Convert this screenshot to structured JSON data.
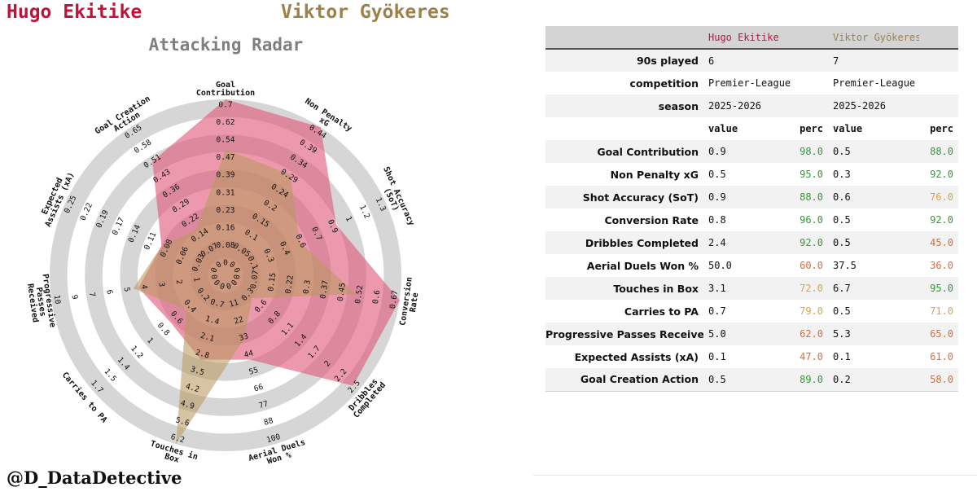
{
  "header": {
    "player_a": "Hugo Ekitike",
    "player_b": "Viktor Gyökeres",
    "credit": "@D_DataDetective"
  },
  "colors": {
    "player_a": "#c2123a",
    "player_b": "#9d8149",
    "fill_a": "#e05a7a",
    "fill_b": "#b99a5e",
    "ring": "#d6d6d6",
    "perc_high": "#2ca02c",
    "perc_mid": "#e6a23c",
    "perc_low": "#e9692c"
  },
  "chart_data": {
    "type": "radar",
    "title": "Attacking Radar",
    "axes": [
      {
        "name": "Goal Contribution",
        "ticks": [
          "0",
          "0.08",
          "0.16",
          "0.23",
          "0.31",
          "0.39",
          "0.47",
          "0.54",
          "0.62",
          "0.7"
        ]
      },
      {
        "name": "Non Penalty xG",
        "ticks": [
          "0",
          "0.05",
          "0.1",
          "0.15",
          "0.2",
          "0.24",
          "0.29",
          "0.34",
          "0.39",
          "0.44"
        ]
      },
      {
        "name": "Shot Accuracy (SoT)",
        "ticks": [
          "0",
          "0.1",
          "0.3",
          "0.4",
          "0.6",
          "0.7",
          "0.9",
          "1",
          "1.2",
          "1.3"
        ]
      },
      {
        "name": "Conversion Rate",
        "ticks": [
          "0",
          "0.07",
          "0.15",
          "0.22",
          "0.3",
          "0.37",
          "0.45",
          "0.52",
          "0.6",
          "0.67"
        ]
      },
      {
        "name": "Dribbles Completed",
        "ticks": [
          "0",
          "0.3",
          "0.6",
          "0.8",
          "1.1",
          "1.4",
          "1.7",
          "2",
          "2.2",
          "2.5"
        ]
      },
      {
        "name": "Aerial Duels Won %",
        "ticks": [
          "0",
          "11",
          "22",
          "33",
          "44",
          "55",
          "66",
          "77",
          "88",
          "100"
        ]
      },
      {
        "name": "Touches in Box",
        "ticks": [
          "0",
          "0.7",
          "1.4",
          "2.1",
          "2.8",
          "3.5",
          "4.2",
          "4.9",
          "5.6",
          "6.2"
        ]
      },
      {
        "name": "Carries to PA",
        "ticks": [
          "0",
          "0.2",
          "0.4",
          "0.6",
          "0.8",
          "1",
          "1.2",
          "1.4",
          "1.5",
          "1.7"
        ]
      },
      {
        "name": "Progressive Passes Received",
        "ticks": [
          "0",
          "1",
          "2",
          "3",
          "4",
          "5",
          "6",
          "7",
          "9",
          "10"
        ]
      },
      {
        "name": "Expected Assists (xA)",
        "ticks": [
          "0",
          "0.03",
          "0.06",
          "0.08",
          "0.11",
          "0.14",
          "0.17",
          "0.19",
          "0.22",
          "0.25"
        ]
      },
      {
        "name": "Goal Creation Action",
        "ticks": [
          "0",
          "0.07",
          "0.14",
          "0.22",
          "0.29",
          "0.36",
          "0.43",
          "0.51",
          "0.58",
          "0.65"
        ]
      }
    ],
    "series": [
      {
        "name": "Hugo Ekitike",
        "values": [
          0.9,
          0.5,
          0.9,
          0.8,
          2.4,
          50.0,
          3.1,
          0.7,
          5.0,
          0.1,
          0.5
        ]
      },
      {
        "name": "Viktor Gyökeres",
        "values": [
          0.5,
          0.3,
          0.6,
          0.5,
          0.5,
          37.5,
          6.7,
          0.5,
          5.3,
          0.1,
          0.2
        ]
      }
    ],
    "axis_max": [
      0.7,
      0.44,
      1.3,
      0.67,
      2.5,
      100,
      6.2,
      1.7,
      10,
      0.25,
      0.65
    ]
  },
  "table": {
    "header": [
      "",
      "Hugo Ekitike",
      "",
      "Viktor Gyökeres",
      ""
    ],
    "info_rows": [
      {
        "label": "90s played",
        "a": "6",
        "b": "7"
      },
      {
        "label": "competition",
        "a": "Premier-League",
        "b": "Premier-League"
      },
      {
        "label": "season",
        "a": "2025-2026",
        "b": "2025-2026"
      }
    ],
    "sub_header": {
      "value": "value",
      "perc": "perc"
    },
    "stat_rows": [
      {
        "label": "Goal Contribution",
        "a_val": "0.9",
        "a_perc": "98.0",
        "b_val": "0.5",
        "b_perc": "88.0"
      },
      {
        "label": "Non Penalty xG",
        "a_val": "0.5",
        "a_perc": "95.0",
        "b_val": "0.3",
        "b_perc": "92.0"
      },
      {
        "label": "Shot Accuracy (SoT)",
        "a_val": "0.9",
        "a_perc": "88.0",
        "b_val": "0.6",
        "b_perc": "76.0"
      },
      {
        "label": "Conversion Rate",
        "a_val": "0.8",
        "a_perc": "96.0",
        "b_val": "0.5",
        "b_perc": "92.0"
      },
      {
        "label": "Dribbles Completed",
        "a_val": "2.4",
        "a_perc": "92.0",
        "b_val": "0.5",
        "b_perc": "45.0"
      },
      {
        "label": "Aerial Duels Won %",
        "a_val": "50.0",
        "a_perc": "60.0",
        "b_val": "37.5",
        "b_perc": "36.0"
      },
      {
        "label": "Touches in Box",
        "a_val": "3.1",
        "a_perc": "72.0",
        "b_val": "6.7",
        "b_perc": "95.0"
      },
      {
        "label": "Carries to PA",
        "a_val": "0.7",
        "a_perc": "79.0",
        "b_val": "0.5",
        "b_perc": "71.0"
      },
      {
        "label": "Progressive Passes Received",
        "a_val": "5.0",
        "a_perc": "62.0",
        "b_val": "5.3",
        "b_perc": "65.0"
      },
      {
        "label": "Expected Assists (xA)",
        "a_val": "0.1",
        "a_perc": "47.0",
        "b_val": "0.1",
        "b_perc": "61.0"
      },
      {
        "label": "Goal Creation Action",
        "a_val": "0.5",
        "a_perc": "89.0",
        "b_val": "0.2",
        "b_perc": "58.0"
      }
    ]
  }
}
